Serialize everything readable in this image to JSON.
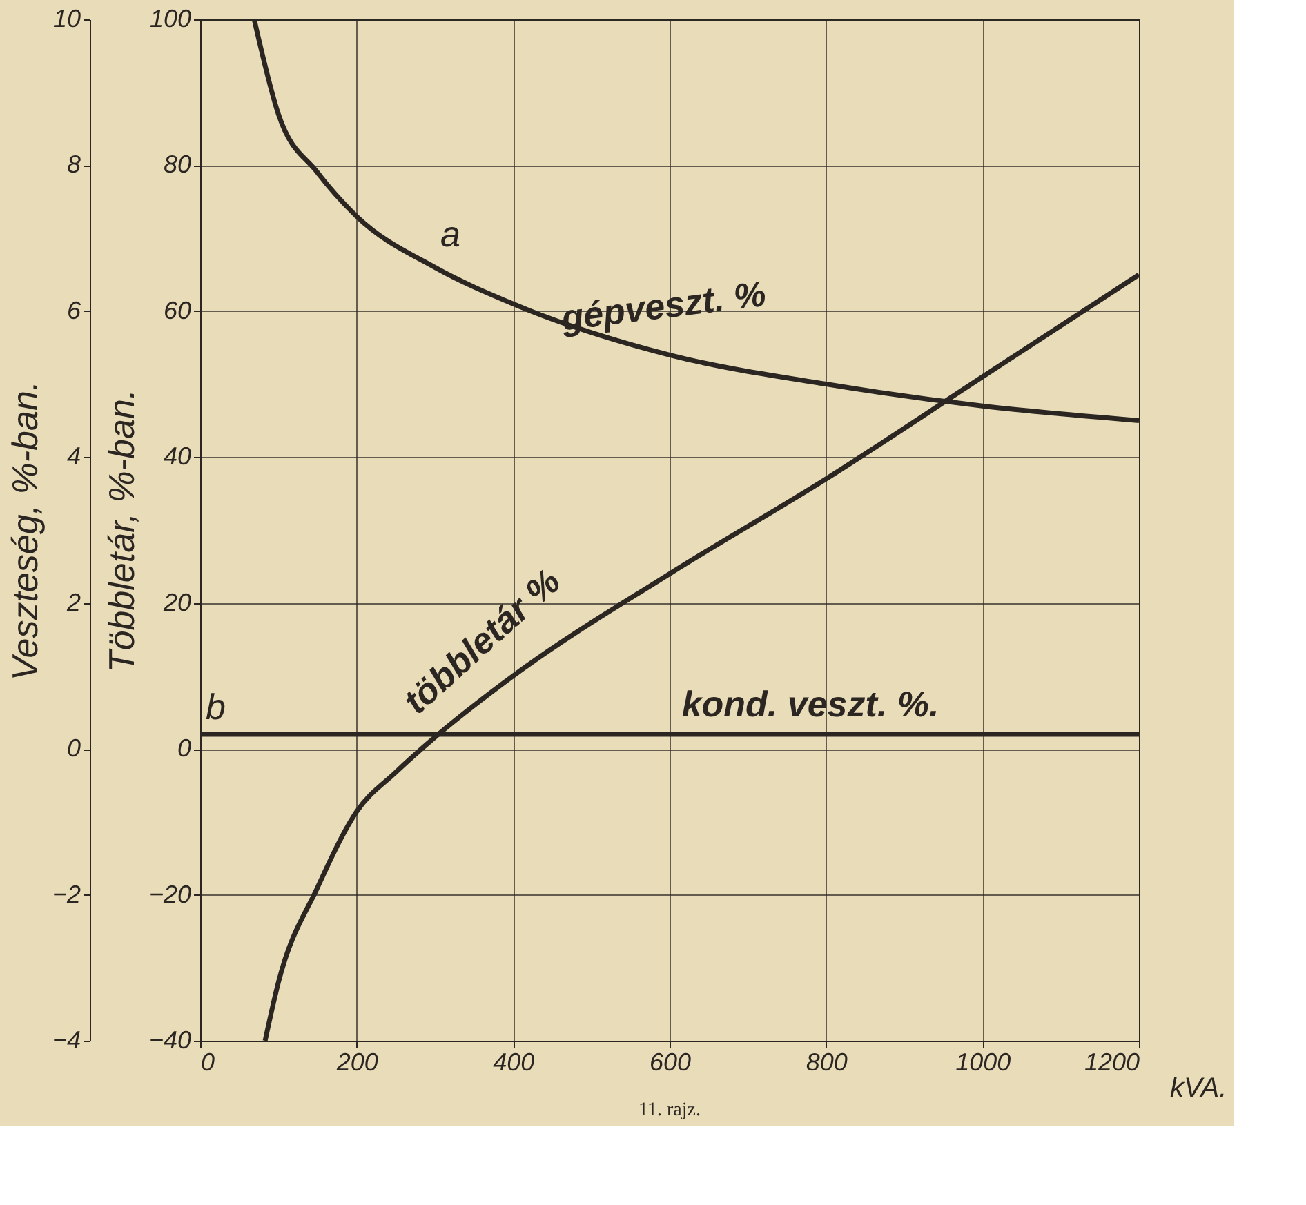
{
  "chart_data": {
    "type": "line",
    "xlabel": "kVA.",
    "ylabel": "Többletár, %-ban.",
    "y2label": "Veszteség, %-ban.",
    "xlim": [
      0,
      1200
    ],
    "xticks": [
      0,
      200,
      400,
      600,
      800,
      1000,
      1200
    ],
    "ylim": [
      -40,
      100
    ],
    "yticks": [
      -40,
      -20,
      0,
      20,
      40,
      60,
      80,
      100
    ],
    "y2lim": [
      -4,
      10
    ],
    "y2ticks": [
      -4,
      -2,
      0,
      2,
      4,
      6,
      8,
      10
    ],
    "grid": true,
    "line_style": "solid",
    "marker": "none",
    "series": [
      {
        "name": "gépveszt. %",
        "color": "#2b2622",
        "axis": "y2",
        "x": [
          69,
          100,
          150,
          200,
          300,
          400,
          600,
          800,
          1000,
          1200
        ],
        "values": [
          10,
          8.7,
          7.9,
          7.3,
          6.6,
          6.1,
          5.4,
          5.0,
          4.7,
          4.5
        ]
      },
      {
        "name": "többletár %",
        "color": "#2b2622",
        "x": [
          83,
          100,
          150,
          200,
          250,
          300,
          400,
          600,
          800,
          1000,
          1200
        ],
        "values": [
          -40,
          -32,
          -19,
          -8.6,
          -3.2,
          1.6,
          10,
          24,
          37,
          51,
          65
        ]
      },
      {
        "name": "kond. veszt. %.",
        "color": "#2b2622",
        "axis": "y2",
        "x": [
          0,
          1200
        ],
        "values": [
          0.2,
          0.2
        ]
      }
    ],
    "annotations": [
      "a",
      "b",
      "11. rajz."
    ]
  }
}
